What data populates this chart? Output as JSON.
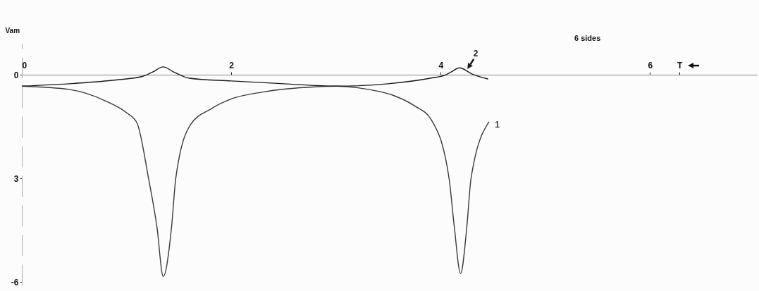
{
  "chart_data": {
    "type": "line",
    "ylabel": "Vam",
    "annotations": [
      "6 sides"
    ],
    "xlim": [
      0,
      7.02
    ],
    "ylim": [
      -6.1,
      0.9
    ],
    "xticks": [
      0,
      2,
      4,
      6,
      {
        "value": 6.28,
        "label": "T"
      }
    ],
    "yticks": [
      0,
      {
        "value": -3,
        "label": "3"
      },
      -6
    ],
    "grid": false,
    "legend": false,
    "marker": "none",
    "line_style": "solid",
    "series": [
      {
        "name": "1",
        "color": "#3a3a3a",
        "x": [
          0,
          0.46,
          0.8,
          1.0,
          1.1,
          1.21,
          1.29,
          1.35,
          1.43,
          1.47,
          1.61,
          1.8,
          2.0,
          2.3,
          2.8,
          3.0,
          3.3,
          3.55,
          3.75,
          3.91,
          4.08,
          4.13,
          4.19,
          4.25,
          4.29,
          4.46
        ],
        "values": [
          -0.33,
          -0.43,
          -0.76,
          -1.1,
          -1.4,
          -3,
          -4.4,
          -5.84,
          -4.4,
          -3,
          -1.45,
          -1.0,
          -0.7,
          -0.5,
          -0.35,
          -0.33,
          -0.42,
          -0.6,
          -0.9,
          -1.3,
          -3,
          -4.4,
          -5.76,
          -4.4,
          -3,
          -1.37
        ]
      },
      {
        "name": "2",
        "color": "#1a1a1a",
        "x": [
          0,
          0.5,
          0.9,
          1.15,
          1.25,
          1.35,
          1.45,
          1.6,
          2.0,
          2.5,
          3.0,
          3.5,
          3.9,
          4.05,
          4.1,
          4.18,
          4.3,
          4.45
        ],
        "values": [
          -0.33,
          -0.25,
          -0.15,
          -0.05,
          0.08,
          0.23,
          0.08,
          -0.1,
          -0.18,
          -0.26,
          -0.33,
          -0.26,
          -0.1,
          0,
          0.08,
          0.2,
          0.02,
          -0.12
        ]
      }
    ]
  }
}
